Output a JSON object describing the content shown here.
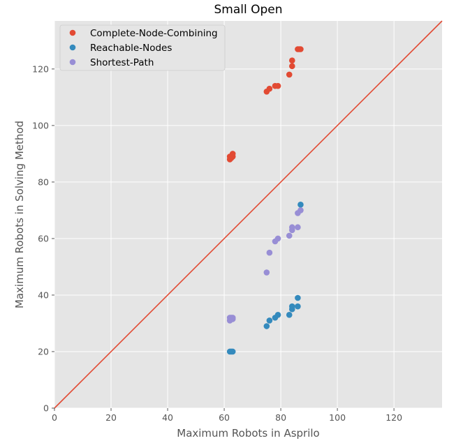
{
  "chart_data": {
    "type": "scatter",
    "title": "Small Open",
    "xlabel": "Maximum Robots in Asprilo",
    "ylabel": "Maximum Robots in Solving Method",
    "xlim": [
      0,
      137
    ],
    "ylim": [
      0,
      137
    ],
    "xticks": [
      0,
      20,
      40,
      60,
      80,
      100,
      120
    ],
    "yticks": [
      0,
      20,
      40,
      60,
      80,
      100,
      120
    ],
    "grid": true,
    "legend_position": "top-left",
    "reference_line": {
      "from": [
        0,
        0
      ],
      "to": [
        137,
        137
      ],
      "color": "#E24A33"
    },
    "series": [
      {
        "name": "Complete-Node-Combining",
        "color": "#E24A33",
        "points": [
          [
            62,
            88
          ],
          [
            62,
            89
          ],
          [
            63,
            89
          ],
          [
            63,
            90
          ],
          [
            62.5,
            88.5
          ],
          [
            75,
            112
          ],
          [
            76,
            113
          ],
          [
            78,
            114
          ],
          [
            79,
            114
          ],
          [
            83,
            118
          ],
          [
            84,
            121
          ],
          [
            84,
            123
          ],
          [
            86,
            127
          ],
          [
            86.5,
            127
          ],
          [
            87,
            127
          ]
        ]
      },
      {
        "name": "Reachable-Nodes",
        "color": "#348ABD",
        "points": [
          [
            62,
            20
          ],
          [
            62.5,
            20
          ],
          [
            63,
            20
          ],
          [
            75,
            29
          ],
          [
            76,
            31
          ],
          [
            78,
            32
          ],
          [
            79,
            33
          ],
          [
            83,
            33
          ],
          [
            84,
            35
          ],
          [
            84,
            36
          ],
          [
            86,
            36
          ],
          [
            86,
            39
          ],
          [
            87,
            72
          ]
        ]
      },
      {
        "name": "Shortest-Path",
        "color": "#988ED5",
        "points": [
          [
            62,
            31
          ],
          [
            62,
            32
          ],
          [
            62.5,
            32
          ],
          [
            63,
            32
          ],
          [
            63,
            31.5
          ],
          [
            75,
            48
          ],
          [
            76,
            55
          ],
          [
            78,
            59
          ],
          [
            79,
            60
          ],
          [
            83,
            61
          ],
          [
            84,
            63
          ],
          [
            84,
            64
          ],
          [
            86,
            64
          ],
          [
            86,
            69
          ],
          [
            87,
            70
          ]
        ]
      }
    ]
  }
}
